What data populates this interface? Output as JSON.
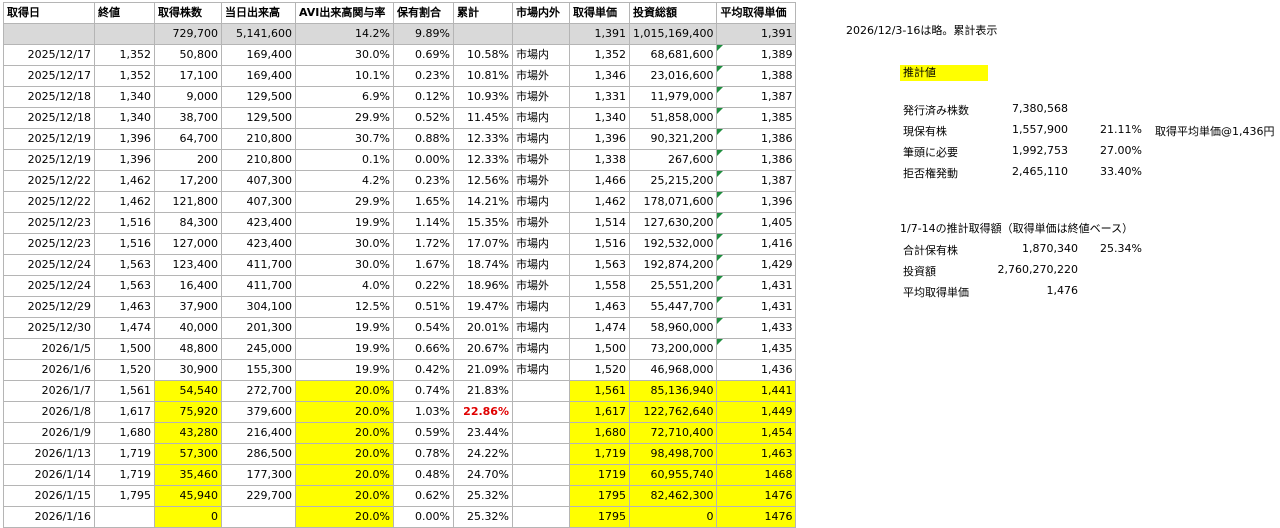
{
  "headers": [
    "取得日",
    "終値",
    "取得株数",
    "当日出来高",
    "AVI出来高関与率",
    "保有割合",
    "累計",
    "市場内外",
    "取得単価",
    "投資総額",
    "平均取得単価"
  ],
  "totals": [
    "",
    "",
    "729,700",
    "5,141,600",
    "14.2%",
    "9.89%",
    "",
    "",
    "1,391",
    "1,015,169,400",
    "1,391"
  ],
  "rows": [
    [
      "2025/12/17",
      "1,352",
      "50,800",
      "169,400",
      "30.0%",
      "0.69%",
      "10.58%",
      "市場内",
      "1,352",
      "68,681,600",
      "1,389"
    ],
    [
      "2025/12/17",
      "1,352",
      "17,100",
      "169,400",
      "10.1%",
      "0.23%",
      "10.81%",
      "市場外",
      "1,346",
      "23,016,600",
      "1,388"
    ],
    [
      "2025/12/18",
      "1,340",
      "9,000",
      "129,500",
      "6.9%",
      "0.12%",
      "10.93%",
      "市場外",
      "1,331",
      "11,979,000",
      "1,387"
    ],
    [
      "2025/12/18",
      "1,340",
      "38,700",
      "129,500",
      "29.9%",
      "0.52%",
      "11.45%",
      "市場内",
      "1,340",
      "51,858,000",
      "1,385"
    ],
    [
      "2025/12/19",
      "1,396",
      "64,700",
      "210,800",
      "30.7%",
      "0.88%",
      "12.33%",
      "市場内",
      "1,396",
      "90,321,200",
      "1,386"
    ],
    [
      "2025/12/19",
      "1,396",
      "200",
      "210,800",
      "0.1%",
      "0.00%",
      "12.33%",
      "市場外",
      "1,338",
      "267,600",
      "1,386"
    ],
    [
      "2025/12/22",
      "1,462",
      "17,200",
      "407,300",
      "4.2%",
      "0.23%",
      "12.56%",
      "市場外",
      "1,466",
      "25,215,200",
      "1,387"
    ],
    [
      "2025/12/22",
      "1,462",
      "121,800",
      "407,300",
      "29.9%",
      "1.65%",
      "14.21%",
      "市場内",
      "1,462",
      "178,071,600",
      "1,396"
    ],
    [
      "2025/12/23",
      "1,516",
      "84,300",
      "423,400",
      "19.9%",
      "1.14%",
      "15.35%",
      "市場外",
      "1,514",
      "127,630,200",
      "1,405"
    ],
    [
      "2025/12/23",
      "1,516",
      "127,000",
      "423,400",
      "30.0%",
      "1.72%",
      "17.07%",
      "市場内",
      "1,516",
      "192,532,000",
      "1,416"
    ],
    [
      "2025/12/24",
      "1,563",
      "123,400",
      "411,700",
      "30.0%",
      "1.67%",
      "18.74%",
      "市場内",
      "1,563",
      "192,874,200",
      "1,429"
    ],
    [
      "2025/12/24",
      "1,563",
      "16,400",
      "411,700",
      "4.0%",
      "0.22%",
      "18.96%",
      "市場外",
      "1,558",
      "25,551,200",
      "1,431"
    ],
    [
      "2025/12/29",
      "1,463",
      "37,900",
      "304,100",
      "12.5%",
      "0.51%",
      "19.47%",
      "市場内",
      "1,463",
      "55,447,700",
      "1,431"
    ],
    [
      "2025/12/30",
      "1,474",
      "40,000",
      "201,300",
      "19.9%",
      "0.54%",
      "20.01%",
      "市場内",
      "1,474",
      "58,960,000",
      "1,433"
    ],
    [
      "2026/1/5",
      "1,500",
      "48,800",
      "245,000",
      "19.9%",
      "0.66%",
      "20.67%",
      "市場内",
      "1,500",
      "73,200,000",
      "1,435"
    ],
    [
      "2026/1/6",
      "1,520",
      "30,900",
      "155,300",
      "19.9%",
      "0.42%",
      "21.09%",
      "市場内",
      "1,520",
      "46,968,000",
      "1,436"
    ],
    [
      "2026/1/7",
      "1,561",
      "54,540",
      "272,700",
      "20.0%",
      "0.74%",
      "21.83%",
      "",
      "1,561",
      "85,136,940",
      "1,441"
    ],
    [
      "2026/1/8",
      "1,617",
      "75,920",
      "379,600",
      "20.0%",
      "1.03%",
      "22.86%",
      "",
      "1,617",
      "122,762,640",
      "1,449"
    ],
    [
      "2026/1/9",
      "1,680",
      "43,280",
      "216,400",
      "20.0%",
      "0.59%",
      "23.44%",
      "",
      "1,680",
      "72,710,400",
      "1,454"
    ],
    [
      "2026/1/13",
      "1,719",
      "57,300",
      "286,500",
      "20.0%",
      "0.78%",
      "24.22%",
      "",
      "1,719",
      "98,498,700",
      "1,463"
    ],
    [
      "2026/1/14",
      "1,719",
      "35,460",
      "177,300",
      "20.0%",
      "0.48%",
      "24.70%",
      "",
      "1719",
      "60,955,740",
      "1468"
    ],
    [
      "2026/1/15",
      "1,795",
      "45,940",
      "229,700",
      "20.0%",
      "0.62%",
      "25.32%",
      "",
      "1795",
      "82,462,300",
      "1476"
    ],
    [
      "2026/1/16",
      "",
      "0",
      "",
      "20.0%",
      "0.00%",
      "25.32%",
      "",
      "1795",
      "0",
      "1476"
    ]
  ],
  "notes": {
    "note_top": "2026/12/3-16は略。累計表示",
    "estimate_label": "推計値",
    "shares": [
      {
        "label": "発行済み株数",
        "value": "7,380,568",
        "pct": "",
        "extra": ""
      },
      {
        "label": "現保有株",
        "value": "1,557,900",
        "pct": "21.11%",
        "extra": "取得平均単価@1,436円"
      },
      {
        "label": "筆頭に必要",
        "value": "1,992,753",
        "pct": "27.00%",
        "extra": ""
      },
      {
        "label": "拒否権発動",
        "value": "2,465,110",
        "pct": "33.40%",
        "extra": ""
      }
    ],
    "estimate_title": "1/7-14の推計取得額（取得単価は終値ベース）",
    "estimate": [
      {
        "label": "合計保有株",
        "value": "1,870,340",
        "pct": "25.34%"
      },
      {
        "label": "投資額",
        "value": "2,760,270,220",
        "pct": ""
      },
      {
        "label": "平均取得単価",
        "value": "1,476",
        "pct": ""
      }
    ]
  }
}
